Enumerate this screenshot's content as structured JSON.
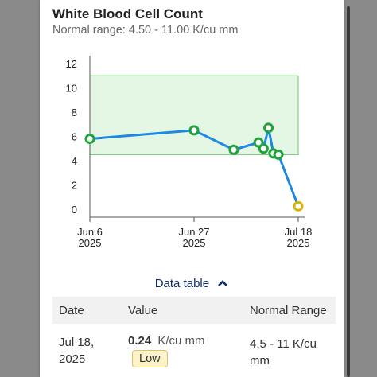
{
  "card": {
    "title": "White Blood Cell Count",
    "subtitle": "Normal range: 4.50 - 11.00 K/cu mm"
  },
  "chart_data": {
    "type": "line",
    "ylim": [
      0,
      12
    ],
    "yticks": [
      "12",
      "10",
      "8",
      "6",
      "4",
      "2",
      "0"
    ],
    "normal_band": [
      4.5,
      11.0
    ],
    "x_tick_labels": [
      {
        "line1": "Jun 6",
        "line2": "2025",
        "day": 0
      },
      {
        "line1": "Jun 27",
        "line2": "2025",
        "day": 21
      },
      {
        "line1": "Jul 18",
        "line2": "2025",
        "day": 42
      }
    ],
    "points": [
      {
        "date": "2025-06-06",
        "value": 5.8,
        "status": "normal"
      },
      {
        "date": "2025-06-27",
        "value": 6.5,
        "status": "normal"
      },
      {
        "date": "2025-07-05",
        "value": 4.9,
        "status": "normal"
      },
      {
        "date": "2025-07-10",
        "value": 5.5,
        "status": "normal"
      },
      {
        "date": "2025-07-11",
        "value": 5.0,
        "status": "normal"
      },
      {
        "date": "2025-07-12",
        "value": 6.7,
        "status": "normal"
      },
      {
        "date": "2025-07-13",
        "value": 4.6,
        "status": "normal"
      },
      {
        "date": "2025-07-14",
        "value": 4.5,
        "status": "normal"
      },
      {
        "date": "2025-07-18",
        "value": 0.24,
        "status": "low"
      }
    ],
    "colors": {
      "line": "#1e88e5",
      "normal": "#1fa33a",
      "low": "#d9b400",
      "band_fill": "#e4f7e4",
      "band_stroke": "#6cc56c"
    }
  },
  "data_table": {
    "toggle_label": "Data table",
    "headers": {
      "date": "Date",
      "value": "Value",
      "range": "Normal Range"
    },
    "rows": [
      {
        "date_line1": "Jul 18,",
        "date_line2": "2025",
        "value": "0.24",
        "unit": "K/cu mm",
        "flag": "Low",
        "range_line1": "4.5 - 11 K/cu",
        "range_line2": "mm"
      }
    ]
  }
}
